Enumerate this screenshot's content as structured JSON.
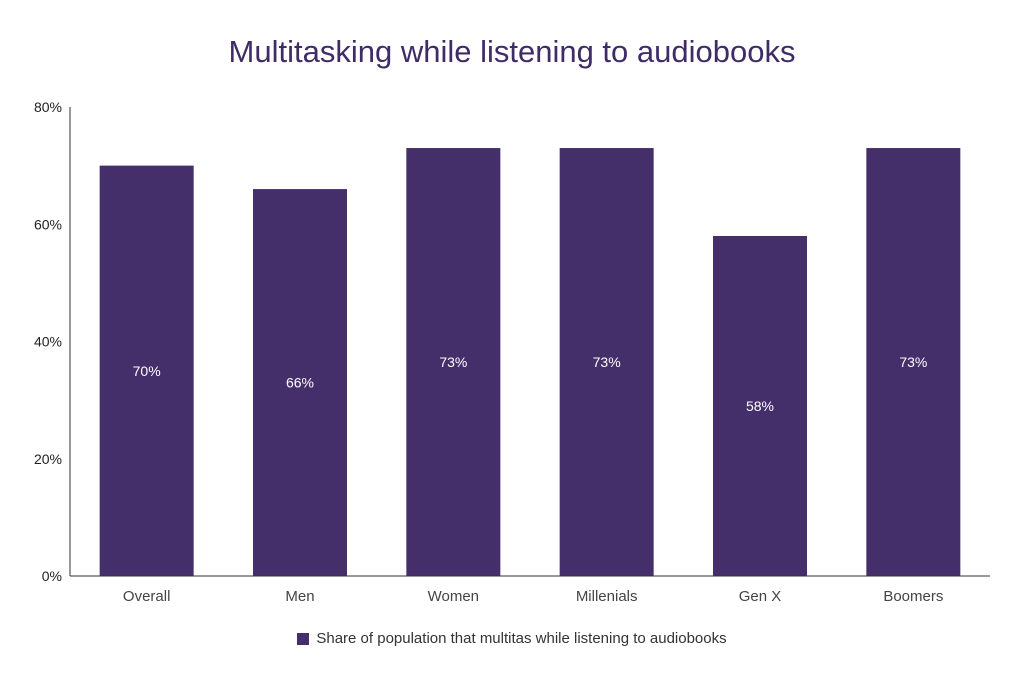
{
  "chart_data": {
    "type": "bar",
    "title": "Multitasking while listening to audiobooks",
    "categories": [
      "Overall",
      "Men",
      "Women",
      "Millenials",
      "Gen X",
      "Boomers"
    ],
    "series": [
      {
        "name": "Share of population that multitas while listening to audiobooks",
        "values": [
          70,
          66,
          73,
          73,
          58,
          73
        ],
        "data_labels": [
          "70%",
          "66%",
          "73%",
          "73%",
          "58%",
          "73%"
        ]
      }
    ],
    "ylim": [
      0,
      80
    ],
    "yticks": [
      0,
      20,
      40,
      60,
      80
    ],
    "ytick_labels": [
      "0%",
      "20%",
      "40%",
      "60%",
      "80%"
    ],
    "grid": false,
    "legend_position": "bottom",
    "bar_color": "#442f6b",
    "title_color": "#3f2c67"
  }
}
